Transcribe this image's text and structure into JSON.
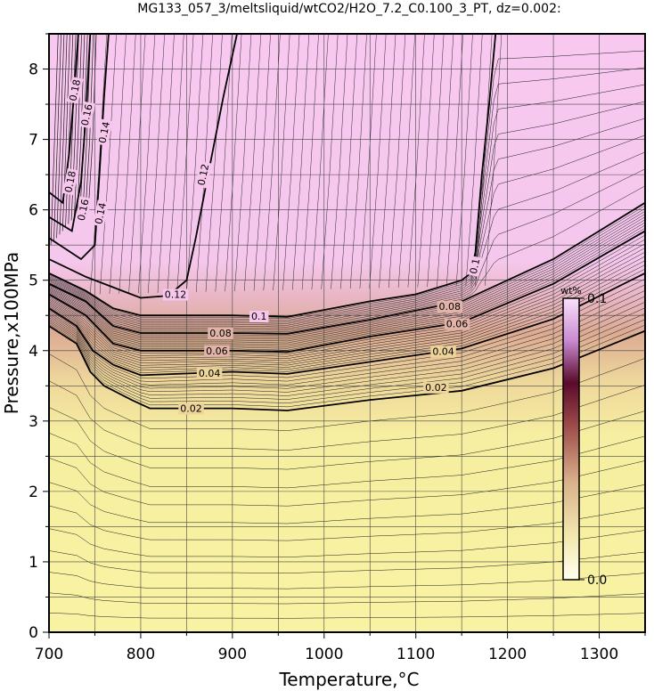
{
  "chart_data": {
    "type": "heatmap",
    "title": "MG133_057_3/meltsliquid/wtCO2/H2O_7.2_C0.100_3_PT, dz=0.002:",
    "xlabel": "Temperature,°C",
    "ylabel": "Pressure,x100MPa",
    "xlim": [
      700,
      1350
    ],
    "ylim": [
      0,
      8.5
    ],
    "x_ticks": [
      "700",
      "800",
      "900",
      "1000",
      "1100",
      "1200",
      "1300"
    ],
    "y_ticks": [
      "0",
      "1",
      "2",
      "3",
      "4",
      "5",
      "6",
      "7",
      "8"
    ],
    "grid": true,
    "colorbar": {
      "label": "wt%",
      "min_label": "0.0",
      "max_label": "0.1",
      "range": [
        0.0,
        0.1
      ],
      "placement": "right-inside"
    },
    "contour_interval": 0.002,
    "contours": [
      {
        "level": 0.02,
        "label": "0.02",
        "points": [
          [
            700,
            4.35
          ],
          [
            730,
            4.1
          ],
          [
            745,
            3.7
          ],
          [
            760,
            3.5
          ],
          [
            790,
            3.3
          ],
          [
            810,
            3.18
          ],
          [
            900,
            3.18
          ],
          [
            960,
            3.15
          ],
          [
            1050,
            3.3
          ],
          [
            1150,
            3.43
          ],
          [
            1250,
            3.75
          ],
          [
            1350,
            4.28
          ]
        ]
      },
      {
        "level": 0.04,
        "label": "0.04",
        "points": [
          [
            700,
            4.6
          ],
          [
            730,
            4.35
          ],
          [
            748,
            4.0
          ],
          [
            770,
            3.8
          ],
          [
            800,
            3.65
          ],
          [
            900,
            3.7
          ],
          [
            960,
            3.67
          ],
          [
            1050,
            3.84
          ],
          [
            1150,
            4.03
          ],
          [
            1250,
            4.45
          ],
          [
            1350,
            5.1
          ]
        ]
      },
      {
        "level": 0.06,
        "label": "0.06",
        "points": [
          [
            700,
            4.8
          ],
          [
            740,
            4.5
          ],
          [
            770,
            4.1
          ],
          [
            800,
            4.0
          ],
          [
            900,
            4.0
          ],
          [
            960,
            3.98
          ],
          [
            1050,
            4.2
          ],
          [
            1150,
            4.4
          ],
          [
            1250,
            4.95
          ],
          [
            1350,
            5.7
          ]
        ]
      },
      {
        "level": 0.08,
        "label": "0.08",
        "points": [
          [
            700,
            4.95
          ],
          [
            740,
            4.7
          ],
          [
            770,
            4.35
          ],
          [
            800,
            4.25
          ],
          [
            900,
            4.25
          ],
          [
            960,
            4.24
          ],
          [
            1050,
            4.44
          ],
          [
            1150,
            4.7
          ],
          [
            1250,
            5.3
          ],
          [
            1350,
            6.1
          ]
        ]
      },
      {
        "level": 0.1,
        "label": "0.1",
        "points": [
          [
            700,
            5.1
          ],
          [
            740,
            4.85
          ],
          [
            770,
            4.6
          ],
          [
            800,
            4.5
          ],
          [
            900,
            4.5
          ],
          [
            960,
            4.48
          ],
          [
            1050,
            4.7
          ],
          [
            1100,
            4.8
          ],
          [
            1150,
            5.0
          ],
          [
            1160,
            5.1
          ],
          [
            1165,
            5.4
          ],
          [
            1172,
            6.5
          ],
          [
            1180,
            7.5
          ],
          [
            1187,
            8.5
          ]
        ]
      },
      {
        "level": 0.12,
        "label": "0.12",
        "points": [
          [
            700,
            5.3
          ],
          [
            740,
            5.05
          ],
          [
            780,
            4.85
          ],
          [
            800,
            4.75
          ],
          [
            830,
            4.78
          ],
          [
            850,
            5.0
          ],
          [
            860,
            5.6
          ],
          [
            875,
            6.6
          ],
          [
            890,
            7.6
          ],
          [
            905,
            8.5
          ]
        ]
      },
      {
        "level": 0.14,
        "label": "0.14",
        "points": [
          [
            700,
            5.6
          ],
          [
            735,
            5.3
          ],
          [
            750,
            5.5
          ],
          [
            755,
            6.5
          ],
          [
            760,
            7.6
          ],
          [
            765,
            8.5
          ]
        ]
      },
      {
        "level": 0.16,
        "label": "0.16",
        "points": [
          [
            700,
            5.9
          ],
          [
            725,
            5.7
          ],
          [
            735,
            6.4
          ],
          [
            740,
            7.3
          ],
          [
            745,
            8.5
          ]
        ]
      },
      {
        "level": 0.18,
        "label": "0.18",
        "points": [
          [
            700,
            6.25
          ],
          [
            715,
            6.1
          ],
          [
            722,
            6.8
          ],
          [
            727,
            7.6
          ],
          [
            732,
            8.5
          ]
        ]
      }
    ]
  }
}
